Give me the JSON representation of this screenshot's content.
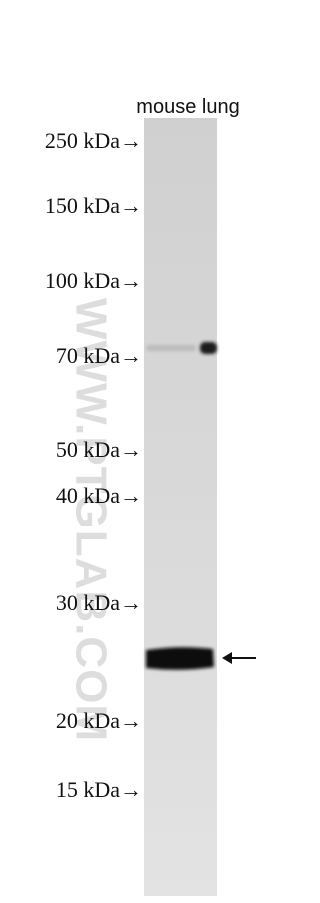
{
  "lane_label": "mouse lung",
  "markers": [
    "250 kDa→",
    "150 kDa→",
    "100 kDa→",
    "70 kDa→",
    "50 kDa→",
    "40 kDa→",
    "30 kDa→",
    "20 kDa→",
    "15 kDa→"
  ],
  "watermark": "WWW.PTGLAB.COM"
}
